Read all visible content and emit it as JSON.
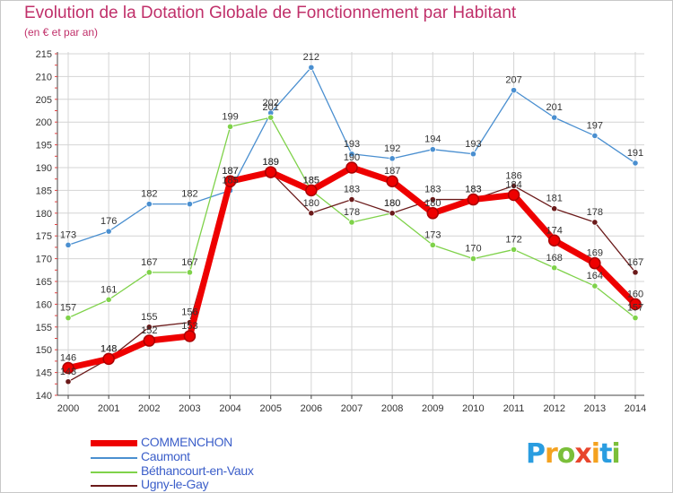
{
  "header": {
    "title": "Evolution de la Dotation Globale de Fonctionnement par Habitant",
    "subtitle": "(en € et par an)"
  },
  "logo": {
    "letters": [
      "P",
      "r",
      "o",
      "x",
      "i",
      "t",
      "i"
    ],
    "colors": [
      "#2a9de0",
      "#f4a21f",
      "#7bbf3a",
      "#e8452c",
      "#f4a21f",
      "#2a9de0",
      "#7bbf3a"
    ]
  },
  "chart_data": {
    "type": "line",
    "x": [
      "2000",
      "2001",
      "2002",
      "2003",
      "2004",
      "2005",
      "2006",
      "2007",
      "2008",
      "2009",
      "2010",
      "2011",
      "2012",
      "2013",
      "2014"
    ],
    "ylim": [
      140,
      215
    ],
    "yticks": [
      140,
      145,
      150,
      155,
      160,
      165,
      170,
      175,
      180,
      185,
      190,
      195,
      200,
      205,
      210,
      215
    ],
    "grid": true,
    "legend_position": "bottom-left",
    "series": [
      {
        "name": "Caumont",
        "color": "#4a8fd0",
        "values": [
          173,
          176,
          182,
          182,
          185,
          202,
          212,
          193,
          192,
          194,
          193,
          207,
          201,
          197,
          191
        ]
      },
      {
        "name": "Béthancourt-en-Vaux",
        "color": "#7fd24a",
        "values": [
          157,
          161,
          167,
          167,
          199,
          201,
          185,
          178,
          180,
          173,
          170,
          172,
          168,
          164,
          157
        ]
      },
      {
        "name": "Ugny-le-Gay",
        "color": "#6b1a1a",
        "values": [
          143,
          148,
          155,
          156,
          187,
          189,
          180,
          183,
          180,
          183,
          183,
          186,
          181,
          178,
          167
        ]
      },
      {
        "name": "COMMENCHON",
        "color": "#ee0000",
        "values": [
          146,
          148,
          152,
          153,
          187,
          189,
          185,
          190,
          187,
          180,
          183,
          184,
          174,
          169,
          160
        ]
      }
    ]
  },
  "legend": [
    {
      "label": "COMMENCHON",
      "color": "#ee0000",
      "width": 7
    },
    {
      "label": "Caumont",
      "color": "#4a8fd0",
      "width": 1.5
    },
    {
      "label": "Béthancourt-en-Vaux",
      "color": "#7fd24a",
      "width": 1.5
    },
    {
      "label": "Ugny-le-Gay",
      "color": "#6b1a1a",
      "width": 1.5
    }
  ]
}
